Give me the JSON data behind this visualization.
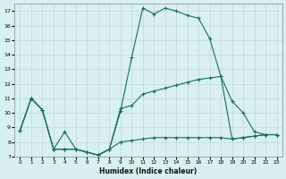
{
  "xlabel": "Humidex (Indice chaleur)",
  "x_values": [
    0,
    1,
    2,
    3,
    4,
    5,
    6,
    7,
    8,
    9,
    10,
    11,
    12,
    13,
    14,
    15,
    16,
    17,
    18,
    19,
    20,
    21,
    22,
    23
  ],
  "line1_y": [
    8.8,
    11.0,
    10.2,
    7.5,
    8.7,
    7.5,
    7.3,
    7.1,
    7.5,
    10.1,
    13.8,
    17.2,
    16.8,
    17.2,
    17.0,
    16.7,
    16.5,
    15.1,
    12.5,
    10.8,
    10.0,
    8.7,
    8.5,
    8.5
  ],
  "line2_y": [
    8.8,
    11.0,
    10.2,
    7.5,
    7.5,
    7.5,
    7.3,
    7.1,
    7.5,
    10.3,
    10.5,
    11.3,
    11.5,
    11.7,
    11.9,
    12.1,
    12.3,
    12.4,
    12.5,
    8.2,
    8.3,
    8.4,
    8.5,
    8.5
  ],
  "line3_y": [
    8.8,
    11.0,
    10.2,
    7.5,
    7.5,
    7.5,
    7.3,
    7.1,
    7.5,
    8.0,
    8.1,
    8.2,
    8.3,
    8.3,
    8.3,
    8.3,
    8.3,
    8.3,
    8.3,
    8.2,
    8.3,
    8.4,
    8.5,
    8.5
  ],
  "line_color": "#1a6b6b",
  "bg_color": "#d8f0f0",
  "grid_color": "#c0d8d8",
  "ylim": [
    7,
    17.5
  ],
  "xlim": [
    -0.5,
    23.5
  ],
  "yticks": [
    7,
    8,
    9,
    10,
    11,
    12,
    13,
    14,
    15,
    16,
    17
  ],
  "xticks": [
    0,
    1,
    2,
    3,
    4,
    5,
    6,
    7,
    8,
    9,
    10,
    11,
    12,
    13,
    14,
    15,
    16,
    17,
    18,
    19,
    20,
    21,
    22,
    23
  ]
}
